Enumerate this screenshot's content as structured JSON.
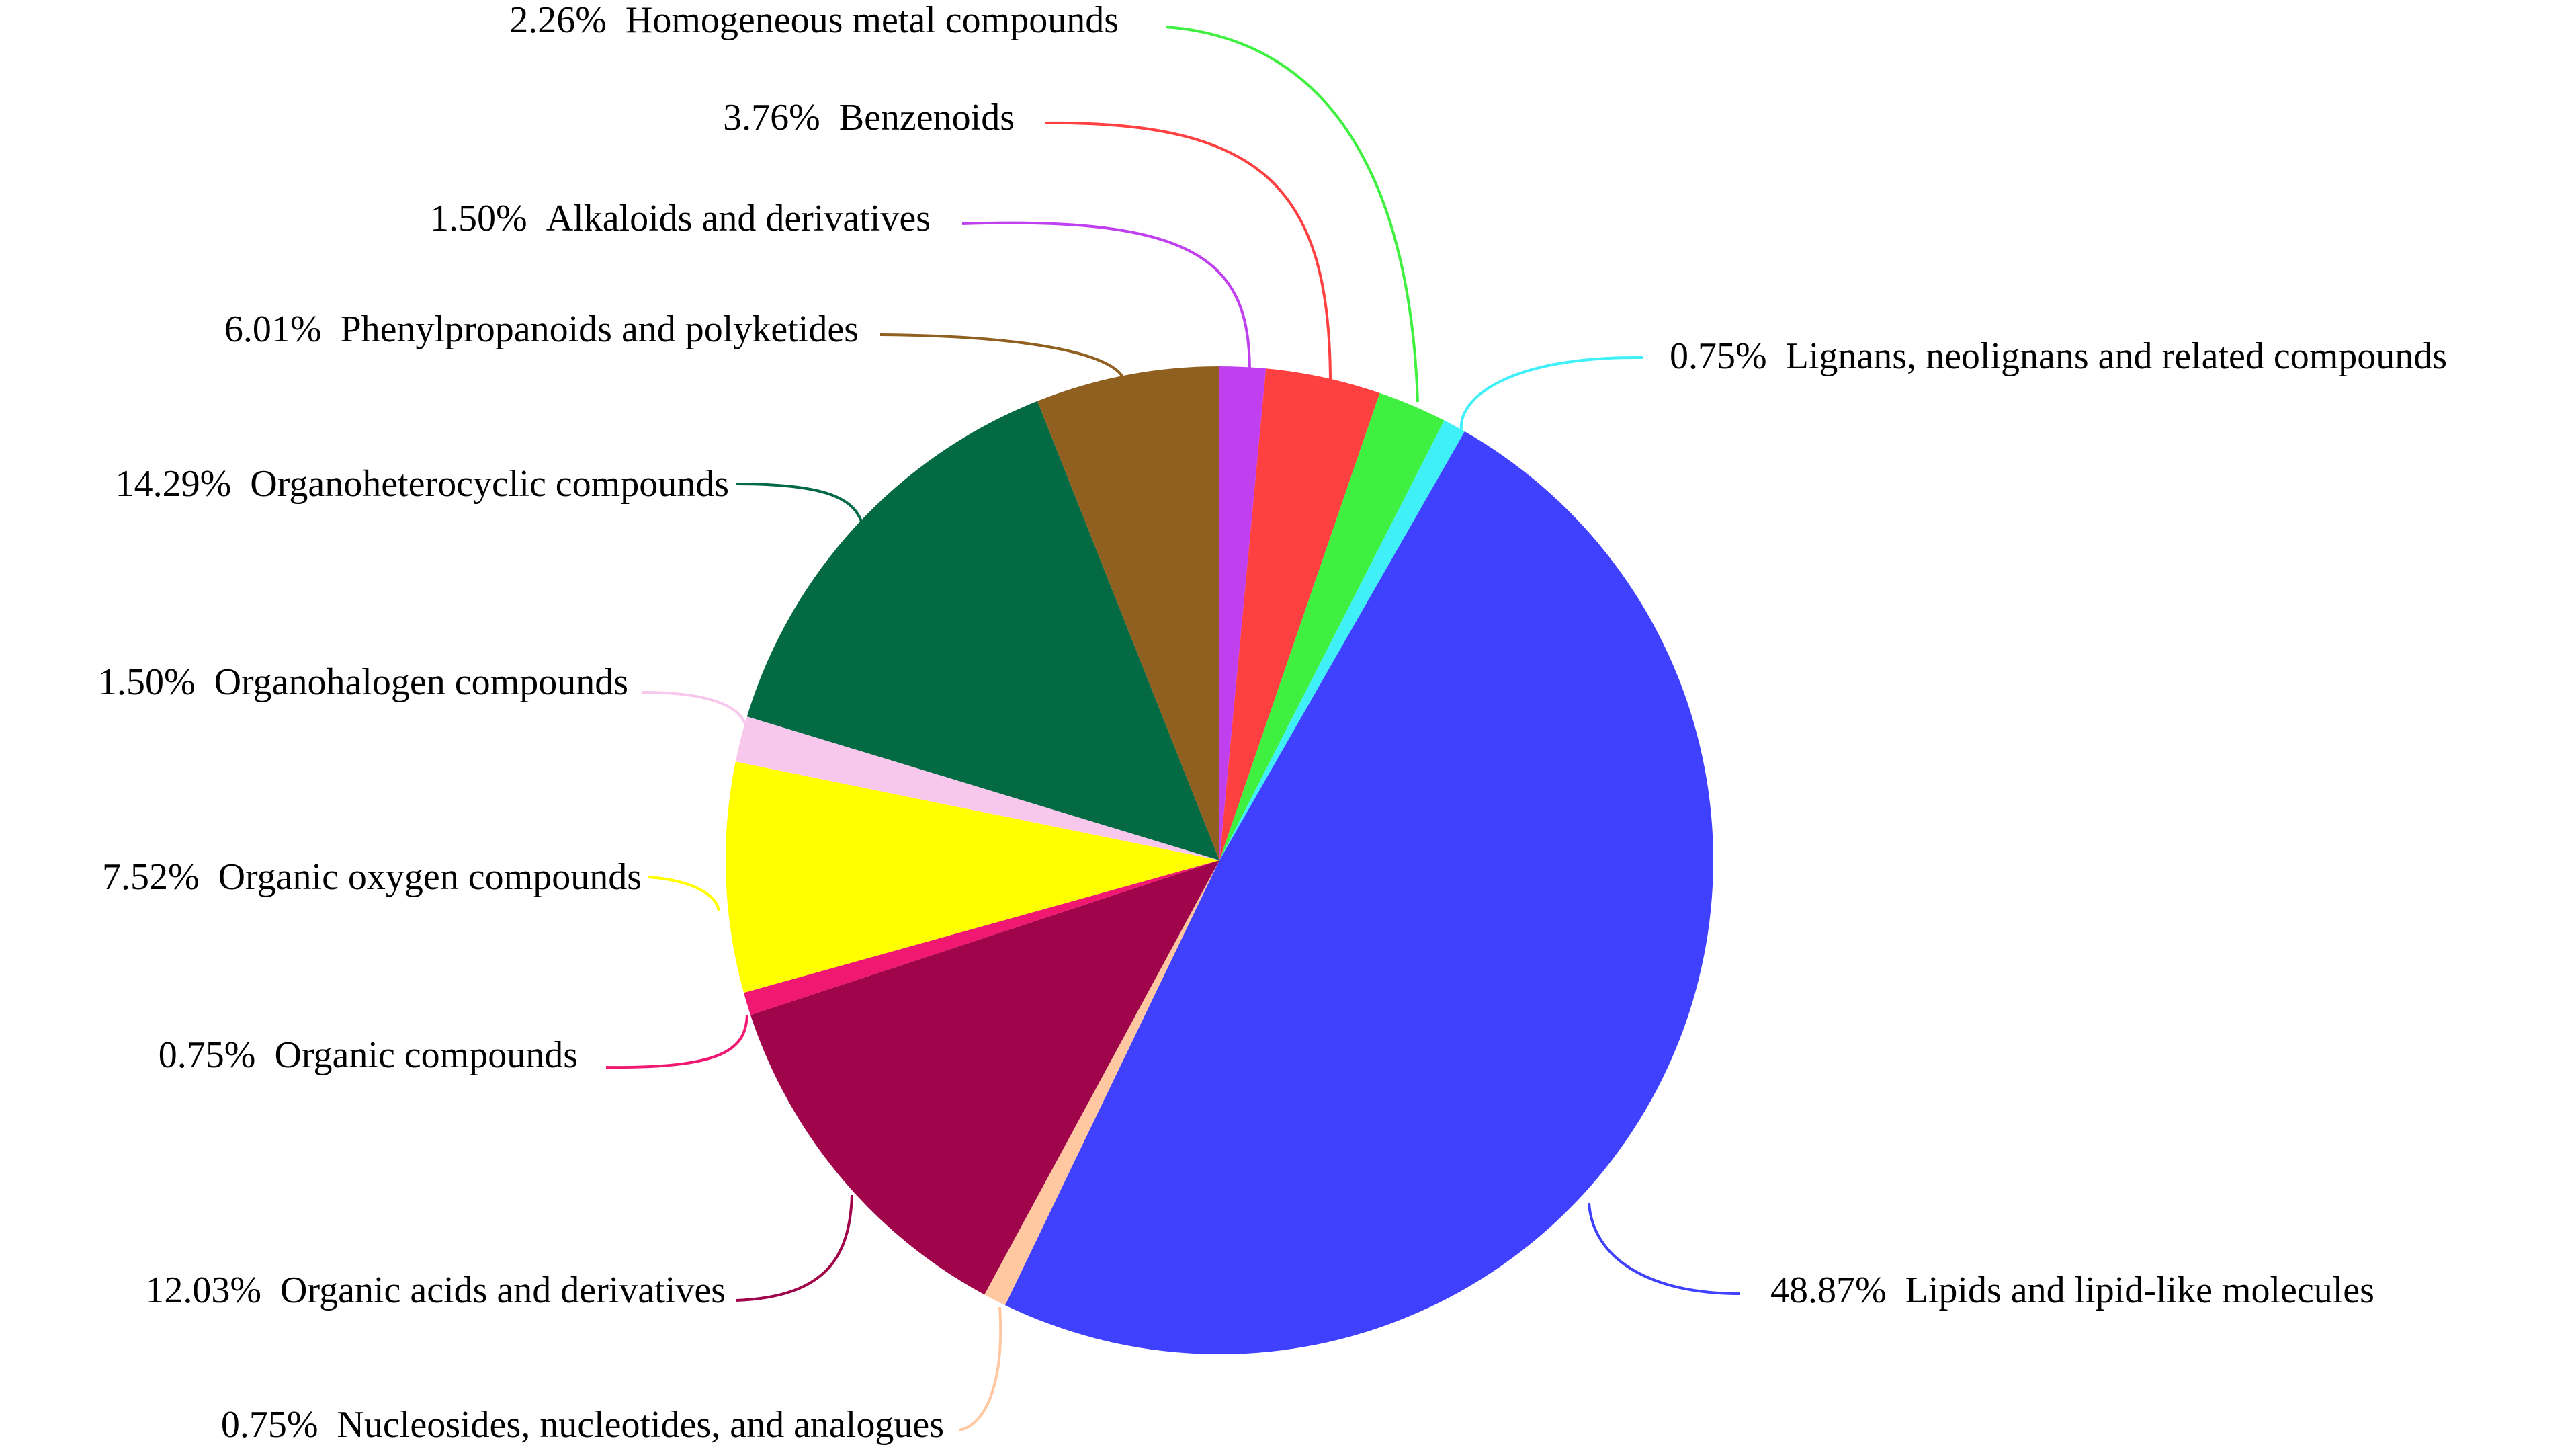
{
  "chart_data": {
    "type": "pie",
    "start_angle_deg": 0,
    "direction": "clockwise",
    "legend": "none",
    "slices": [
      {
        "label": "Alkaloids and derivatives",
        "pct_label": "1.50%",
        "value": 1.5,
        "color": "#C040F0"
      },
      {
        "label": "Benzenoids",
        "pct_label": "3.76%",
        "value": 3.76,
        "color": "#FF4040"
      },
      {
        "label": "Homogeneous metal compounds",
        "pct_label": "2.26%",
        "value": 2.26,
        "color": "#40F040"
      },
      {
        "label": "Lignans, neolignans and related compounds",
        "pct_label": "0.75%",
        "value": 0.75,
        "color": "#40F0F8"
      },
      {
        "label": "Lipids and lipid-like molecules",
        "pct_label": "48.87%",
        "value": 48.87,
        "color": "#4040FF"
      },
      {
        "label": "Nucleosides, nucleotides, and analogues",
        "pct_label": "0.75%",
        "value": 0.75,
        "color": "#FFC8A0"
      },
      {
        "label": "Organic acids and derivatives",
        "pct_label": "12.03%",
        "value": 12.03,
        "color": "#A0044A"
      },
      {
        "label": "Organic compounds",
        "pct_label": "0.75%",
        "value": 0.75,
        "color": "#F01870"
      },
      {
        "label": "Organic oxygen compounds",
        "pct_label": "7.52%",
        "value": 7.52,
        "color": "#FFFF00"
      },
      {
        "label": "Organohalogen compounds",
        "pct_label": "1.50%",
        "value": 1.5,
        "color": "#F8C8EC"
      },
      {
        "label": "Organoheterocyclic compounds",
        "pct_label": "14.29%",
        "value": 14.29,
        "color": "#046A44"
      },
      {
        "label": "Phenylpropanoids and polyketides",
        "pct_label": "6.01%",
        "value": 6.01,
        "color": "#906020"
      }
    ]
  }
}
